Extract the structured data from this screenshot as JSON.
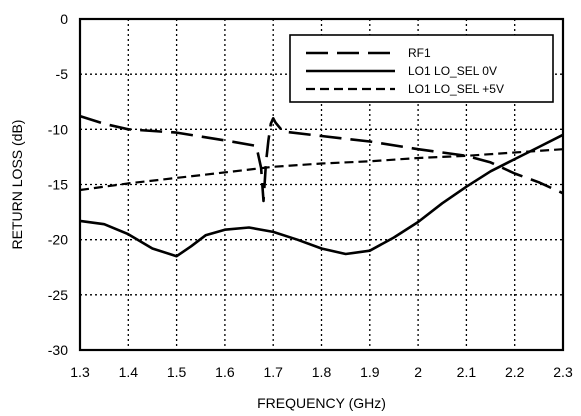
{
  "chart_data": {
    "type": "line",
    "xlabel": "FREQUENCY (GHz)",
    "ylabel": "RETURN LOSS (dB)",
    "xlim": [
      1.3,
      2.3
    ],
    "ylim": [
      -30,
      0
    ],
    "xticks": [
      "1.3",
      "1.4",
      "1.5",
      "1.6",
      "1.7",
      "1.8",
      "1.9",
      "2",
      "2.1",
      "2.2",
      "2.3"
    ],
    "yticks": [
      "0",
      "-5",
      "-10",
      "-15",
      "-20",
      "-25",
      "-30"
    ],
    "grid": true,
    "legend_position": "top-right",
    "series": [
      {
        "name": "RF1",
        "style": "long-dash",
        "color": "#000000",
        "segments": [
          [
            [
              1.3,
              -8.8
            ],
            [
              1.35,
              -9.5
            ],
            [
              1.4,
              -10.0
            ],
            [
              1.5,
              -10.3
            ],
            [
              1.6,
              -11.0
            ],
            [
              1.665,
              -11.5
            ],
            [
              1.675,
              -13.5
            ],
            [
              1.68,
              -16.5
            ],
            [
              1.685,
              -13.0
            ],
            [
              1.69,
              -11.0
            ],
            [
              1.695,
              -9.5
            ],
            [
              1.7,
              -9.0
            ],
            [
              1.705,
              -9.4
            ],
            [
              1.72,
              -10.2
            ],
            [
              1.8,
              -10.6
            ],
            [
              1.9,
              -11.1
            ],
            [
              2.0,
              -11.8
            ],
            [
              2.1,
              -12.4
            ],
            [
              2.15,
              -13.0
            ],
            [
              2.2,
              -14.0
            ],
            [
              2.25,
              -14.8
            ],
            [
              2.3,
              -15.8
            ]
          ]
        ]
      },
      {
        "name": "LO1 LO_SEL 0V",
        "style": "solid",
        "color": "#000000",
        "segments": [
          [
            [
              1.3,
              -18.3
            ],
            [
              1.35,
              -18.6
            ],
            [
              1.4,
              -19.5
            ],
            [
              1.45,
              -20.8
            ],
            [
              1.5,
              -21.5
            ],
            [
              1.53,
              -20.6
            ],
            [
              1.56,
              -19.6
            ],
            [
              1.6,
              -19.1
            ],
            [
              1.65,
              -18.9
            ],
            [
              1.7,
              -19.3
            ],
            [
              1.75,
              -20.0
            ],
            [
              1.8,
              -20.8
            ],
            [
              1.85,
              -21.3
            ],
            [
              1.9,
              -21.0
            ],
            [
              1.95,
              -19.8
            ],
            [
              2.0,
              -18.4
            ],
            [
              2.05,
              -16.7
            ],
            [
              2.1,
              -15.2
            ],
            [
              2.15,
              -13.8
            ],
            [
              2.2,
              -12.7
            ],
            [
              2.25,
              -11.6
            ],
            [
              2.3,
              -10.5
            ]
          ]
        ]
      },
      {
        "name": "LO1 LO_SEL +5V",
        "style": "short-dash",
        "color": "#000000",
        "segments": [
          [
            [
              1.3,
              -15.5
            ],
            [
              1.4,
              -14.9
            ],
            [
              1.5,
              -14.4
            ],
            [
              1.6,
              -13.9
            ],
            [
              1.7,
              -13.4
            ],
            [
              1.8,
              -13.1
            ],
            [
              1.9,
              -12.9
            ],
            [
              2.0,
              -12.6
            ],
            [
              2.1,
              -12.4
            ],
            [
              2.2,
              -12.1
            ],
            [
              2.3,
              -11.8
            ]
          ]
        ]
      }
    ]
  }
}
